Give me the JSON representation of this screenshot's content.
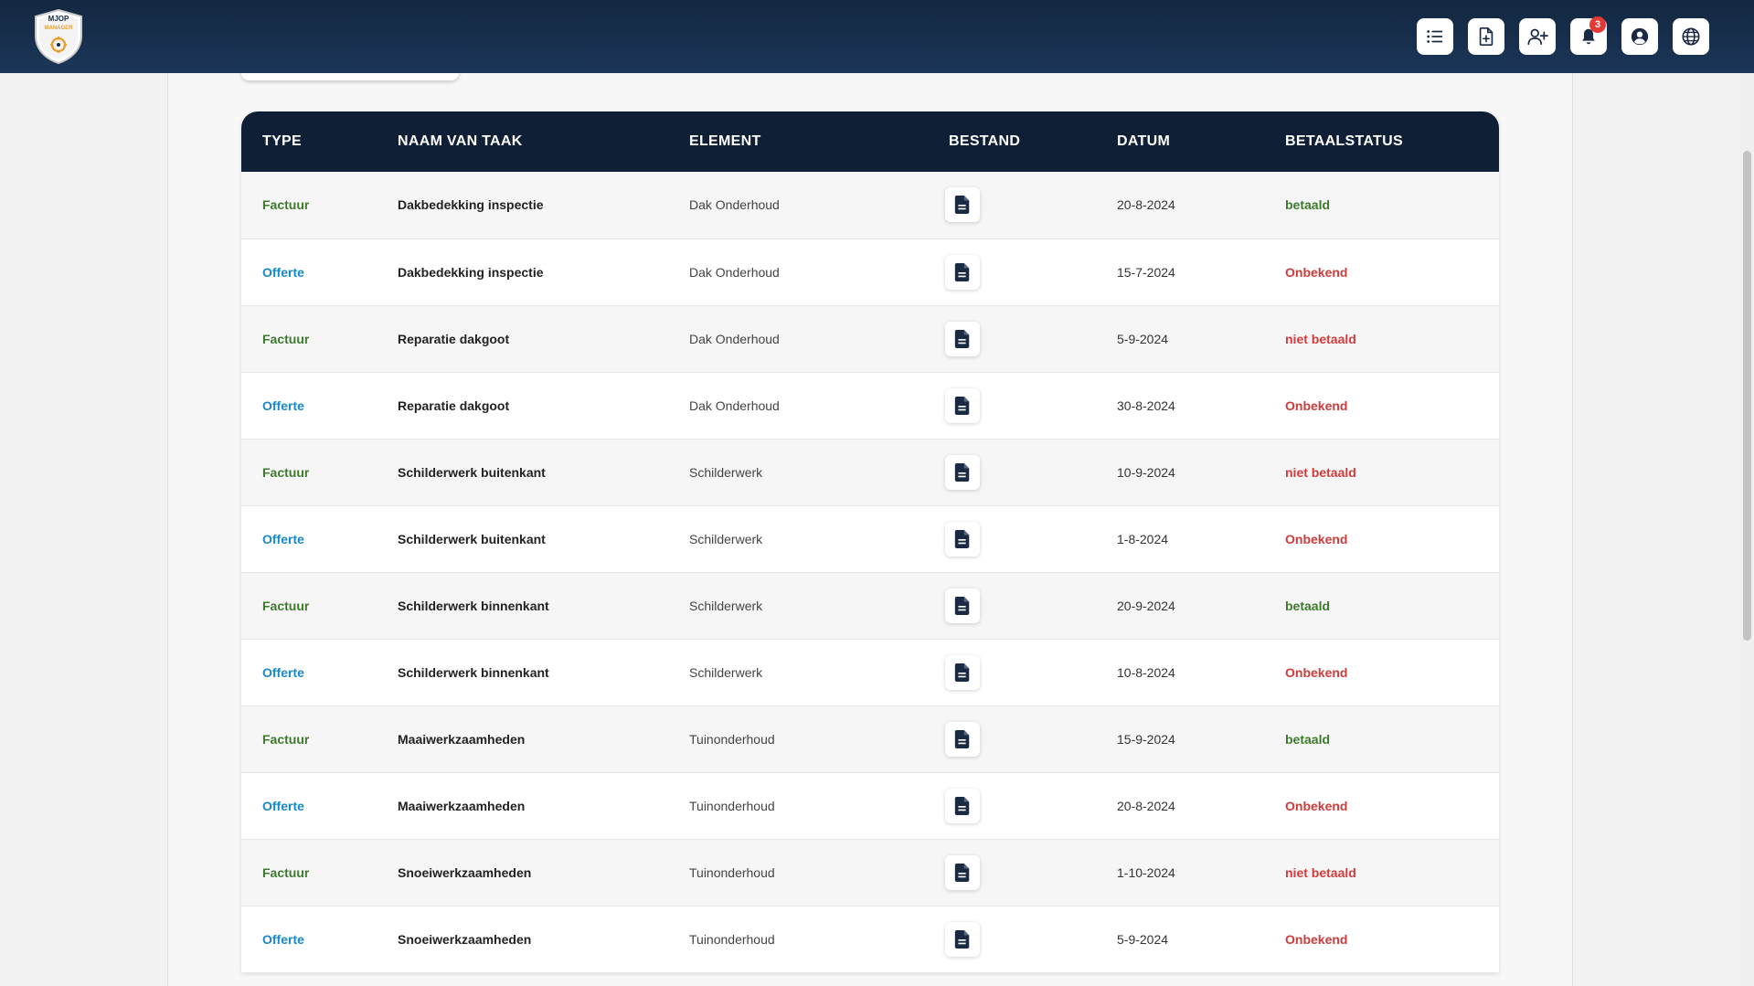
{
  "app": {
    "logo_text_line1": "MJOP",
    "logo_text_line2": "MANAGER"
  },
  "header": {
    "notification_count": "3",
    "icons": [
      "list-icon",
      "add-document-icon",
      "add-user-icon",
      "bell-icon",
      "user-circle-icon",
      "globe-icon"
    ]
  },
  "table": {
    "columns": {
      "type": "TYPE",
      "task": "NAAM VAN TAAK",
      "element": "ELEMENT",
      "file": "BESTAND",
      "date": "DATUM",
      "status": "BETAALSTATUS"
    },
    "rows": [
      {
        "type": "Factuur",
        "task": "Dakbedekking inspectie",
        "element": "Dak Onderhoud",
        "date": "20-8-2024",
        "status": "betaald"
      },
      {
        "type": "Offerte",
        "task": "Dakbedekking inspectie",
        "element": "Dak Onderhoud",
        "date": "15-7-2024",
        "status": "Onbekend"
      },
      {
        "type": "Factuur",
        "task": "Reparatie dakgoot",
        "element": "Dak Onderhoud",
        "date": "5-9-2024",
        "status": "niet betaald"
      },
      {
        "type": "Offerte",
        "task": "Reparatie dakgoot",
        "element": "Dak Onderhoud",
        "date": "30-8-2024",
        "status": "Onbekend"
      },
      {
        "type": "Factuur",
        "task": "Schilderwerk buitenkant",
        "element": "Schilderwerk",
        "date": "10-9-2024",
        "status": "niet betaald"
      },
      {
        "type": "Offerte",
        "task": "Schilderwerk buitenkant",
        "element": "Schilderwerk",
        "date": "1-8-2024",
        "status": "Onbekend"
      },
      {
        "type": "Factuur",
        "task": "Schilderwerk binnenkant",
        "element": "Schilderwerk",
        "date": "20-9-2024",
        "status": "betaald"
      },
      {
        "type": "Offerte",
        "task": "Schilderwerk binnenkant",
        "element": "Schilderwerk",
        "date": "10-8-2024",
        "status": "Onbekend"
      },
      {
        "type": "Factuur",
        "task": "Maaiwerkzaamheden",
        "element": "Tuinonderhoud",
        "date": "15-9-2024",
        "status": "betaald"
      },
      {
        "type": "Offerte",
        "task": "Maaiwerkzaamheden",
        "element": "Tuinonderhoud",
        "date": "20-8-2024",
        "status": "Onbekend"
      },
      {
        "type": "Factuur",
        "task": "Snoeiwerkzaamheden",
        "element": "Tuinonderhoud",
        "date": "1-10-2024",
        "status": "niet betaald"
      },
      {
        "type": "Offerte",
        "task": "Snoeiwerkzaamheden",
        "element": "Tuinonderhoud",
        "date": "5-9-2024",
        "status": "Onbekend"
      }
    ]
  },
  "colors": {
    "header_bg": "#132740",
    "table_header_bg": "#0f1f36",
    "factuur": "#3d7a2c",
    "offerte": "#1789c9",
    "paid": "#3d7a2c",
    "unpaid": "#d03b3b"
  }
}
